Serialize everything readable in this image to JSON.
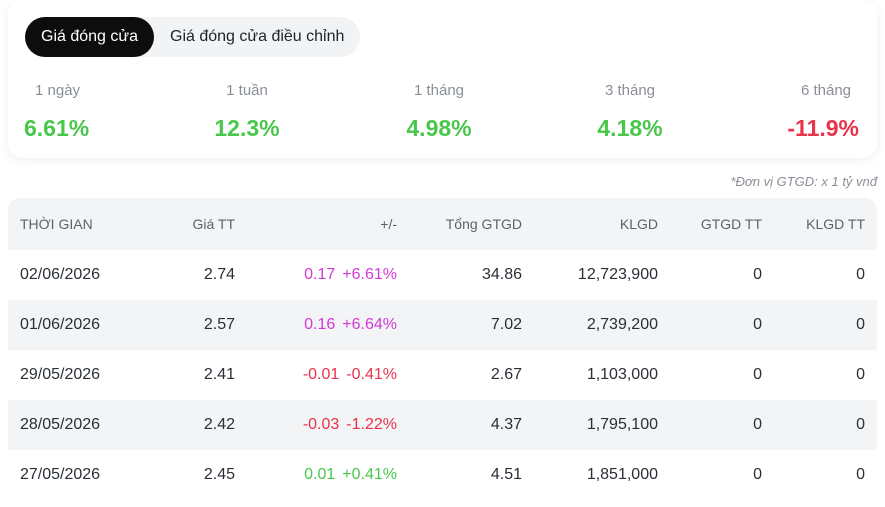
{
  "tabs": [
    {
      "label": "Giá đóng cửa",
      "active": true
    },
    {
      "label": "Giá đóng cửa điều chỉnh",
      "active": false
    }
  ],
  "periods": [
    {
      "label": "1 ngày",
      "value": "6.61%",
      "trend": "positive"
    },
    {
      "label": "1 tuần",
      "value": "12.3%",
      "trend": "positive"
    },
    {
      "label": "1 tháng",
      "value": "4.98%",
      "trend": "positive"
    },
    {
      "label": "3 tháng",
      "value": "4.18%",
      "trend": "positive"
    },
    {
      "label": "6 tháng",
      "value": "-11.9%",
      "trend": "negative"
    }
  ],
  "unit_note": "*Đơn vị GTGD: x 1 tỷ vnđ",
  "table": {
    "headers": {
      "time": "THỜI GIAN",
      "price": "Giá TT",
      "change": "+/-",
      "total_value": "Tổng GTGD",
      "volume": "KLGD",
      "deal_value": "GTGD TT",
      "deal_volume": "KLGD TT"
    },
    "rows": [
      {
        "time": "02/06/2026",
        "price": "2.74",
        "change": "0.17",
        "change_pct": "+6.61%",
        "tone": "ceil",
        "total_value": "34.86",
        "volume": "12,723,900",
        "deal_value": "0",
        "deal_volume": "0"
      },
      {
        "time": "01/06/2026",
        "price": "2.57",
        "change": "0.16",
        "change_pct": "+6.64%",
        "tone": "ceil",
        "total_value": "7.02",
        "volume": "2,739,200",
        "deal_value": "0",
        "deal_volume": "0"
      },
      {
        "time": "29/05/2026",
        "price": "2.41",
        "change": "-0.01",
        "change_pct": "-0.41%",
        "tone": "negative",
        "total_value": "2.67",
        "volume": "1,103,000",
        "deal_value": "0",
        "deal_volume": "0"
      },
      {
        "time": "28/05/2026",
        "price": "2.42",
        "change": "-0.03",
        "change_pct": "-1.22%",
        "tone": "negative",
        "total_value": "4.37",
        "volume": "1,795,100",
        "deal_value": "0",
        "deal_volume": "0"
      },
      {
        "time": "27/05/2026",
        "price": "2.45",
        "change": "0.01",
        "change_pct": "+0.41%",
        "tone": "positive",
        "total_value": "4.51",
        "volume": "1,851,000",
        "deal_value": "0",
        "deal_volume": "0"
      }
    ]
  },
  "colors": {
    "positive": "#49c74b",
    "negative": "#e8334a",
    "ceil": "#d23ad6"
  }
}
